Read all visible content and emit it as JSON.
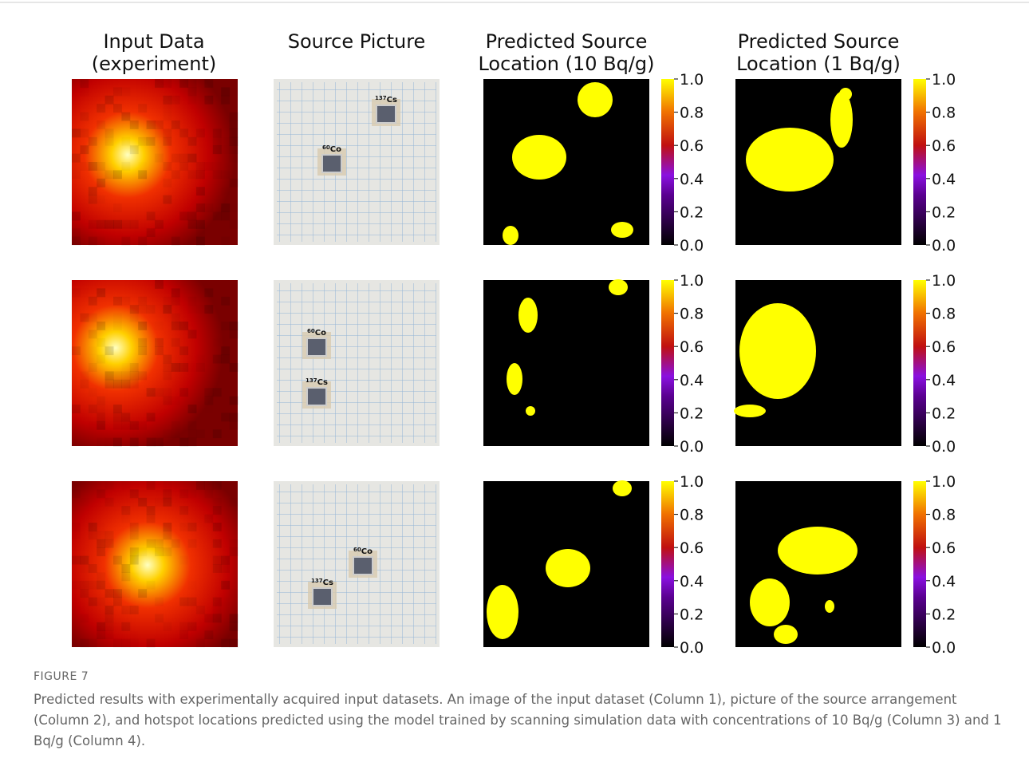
{
  "columns": [
    {
      "title_lines": [
        "Input Data",
        "(experiment)"
      ]
    },
    {
      "title_lines": [
        "Source Picture"
      ]
    },
    {
      "title_lines": [
        "Predicted Source",
        "Location (10 Bq/g)"
      ]
    },
    {
      "title_lines": [
        "Predicted Source",
        "Location (1 Bq/g)"
      ]
    }
  ],
  "colorbar_ticks": [
    "0.0",
    "0.2",
    "0.4",
    "0.6",
    "0.8",
    "1.0"
  ],
  "rows": [
    {
      "sources": [
        {
          "mass": "137",
          "element": "Cs"
        },
        {
          "mass": "60",
          "element": "Co"
        }
      ]
    },
    {
      "sources": [
        {
          "mass": "60",
          "element": "Co"
        },
        {
          "mass": "137",
          "element": "Cs"
        }
      ]
    },
    {
      "sources": [
        {
          "mass": "60",
          "element": "Co"
        },
        {
          "mass": "137",
          "element": "Cs"
        }
      ]
    }
  ],
  "caption": {
    "label": "FIGURE 7",
    "text": "Predicted results with experimentally acquired input datasets. An image of the input dataset (Column 1), picture of the source arrangement (Column 2), and hotspot locations predicted using the model trained by scanning simulation data with concentrations of 10 Bq/g (Column 3) and 1 Bq/g (Column 4)."
  }
}
